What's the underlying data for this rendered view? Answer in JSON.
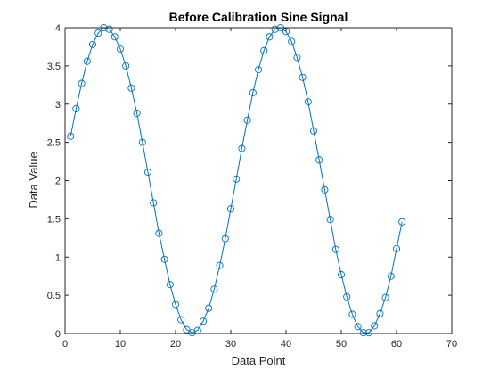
{
  "chart_data": {
    "type": "line",
    "title": "Before Calibration Sine Signal",
    "xlabel": "Data Point",
    "ylabel": "Data Value",
    "xlim": [
      0,
      70
    ],
    "ylim": [
      0,
      4
    ],
    "x_ticks": [
      "0",
      "10",
      "20",
      "30",
      "40",
      "50",
      "60",
      "70"
    ],
    "y_ticks": [
      "0",
      "0.5",
      "1",
      "1.5",
      "2",
      "2.5",
      "3",
      "3.5",
      "4"
    ],
    "grid": false,
    "legend": "none",
    "markers": "open circles",
    "colors": {
      "series": "#0072BD",
      "axes": "#262626",
      "background": "#ffffff"
    },
    "series": [
      {
        "x": [
          1,
          2,
          3,
          4,
          5,
          6,
          7,
          8,
          9,
          10,
          11,
          12,
          13,
          14,
          15,
          16,
          17,
          18,
          19,
          20,
          21,
          22,
          23,
          24,
          25,
          26,
          27,
          28,
          29,
          30,
          31,
          32,
          33,
          34,
          35,
          36,
          37,
          38,
          39,
          40,
          41,
          42,
          43,
          44,
          45,
          46,
          47,
          48,
          49,
          50,
          51,
          52,
          53,
          54,
          55,
          56,
          57,
          58,
          59,
          60,
          61
        ],
        "y": [
          2.58,
          2.94,
          3.27,
          3.56,
          3.78,
          3.93,
          4.0,
          3.98,
          3.88,
          3.72,
          3.5,
          3.21,
          2.88,
          2.5,
          2.11,
          1.71,
          1.31,
          0.97,
          0.64,
          0.38,
          0.18,
          0.05,
          0.01,
          0.04,
          0.16,
          0.33,
          0.58,
          0.89,
          1.24,
          1.63,
          2.02,
          2.42,
          2.79,
          3.15,
          3.45,
          3.7,
          3.88,
          3.98,
          4.0,
          3.95,
          3.82,
          3.61,
          3.35,
          3.03,
          2.65,
          2.27,
          1.88,
          1.49,
          1.1,
          0.77,
          0.48,
          0.25,
          0.09,
          0.01,
          0.01,
          0.1,
          0.26,
          0.47,
          0.75,
          1.11,
          1.46
        ]
      }
    ]
  }
}
